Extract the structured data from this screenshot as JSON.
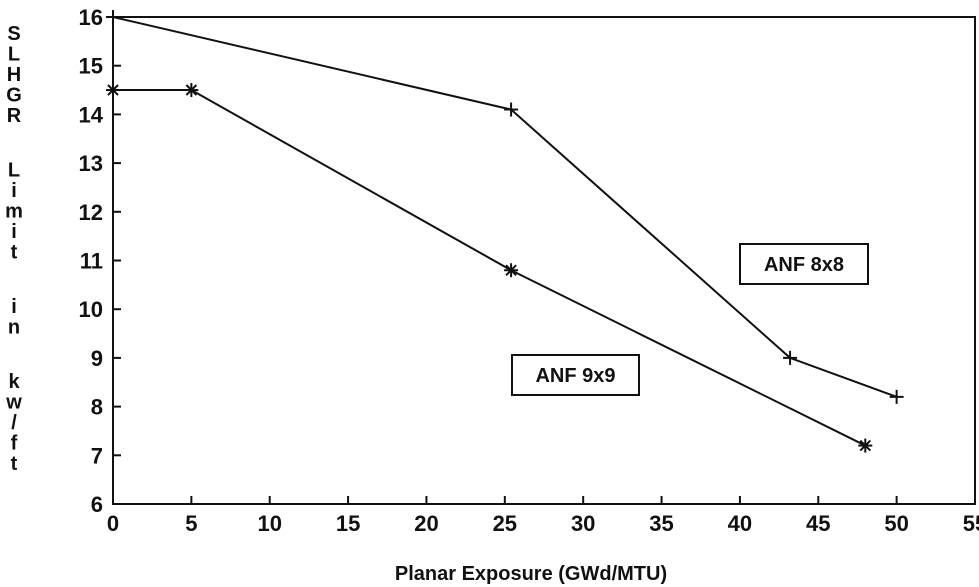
{
  "chart_data": {
    "type": "line",
    "xlabel": "Planar Exposure (GWd/MTU)",
    "ylabel": "SLHGR Limit in kw/ft",
    "xlim": [
      0,
      55
    ],
    "ylim": [
      6,
      16
    ],
    "x_ticks": [
      "0",
      "5",
      "10",
      "15",
      "20",
      "25",
      "30",
      "35",
      "40",
      "45",
      "50",
      "55"
    ],
    "y_ticks": [
      "6",
      "7",
      "8",
      "9",
      "10",
      "11",
      "12",
      "13",
      "14",
      "15",
      "16"
    ],
    "grid": false,
    "legend": "none",
    "series": [
      {
        "name": "ANF 8x8",
        "marker": "plus",
        "color": "#111111",
        "points": [
          [
            0,
            16.0
          ],
          [
            25.4,
            14.1
          ],
          [
            43.2,
            9.0
          ],
          [
            50.0,
            8.2
          ]
        ]
      },
      {
        "name": "ANF 9x9",
        "marker": "asterisk",
        "color": "#111111",
        "points": [
          [
            0,
            14.5
          ],
          [
            5.0,
            14.5
          ],
          [
            25.4,
            10.8
          ],
          [
            48.0,
            7.2
          ]
        ]
      }
    ],
    "annotations": [
      {
        "text": "ANF 8x8",
        "series": "ANF 8x8"
      },
      {
        "text": "ANF 9x9",
        "series": "ANF 9x9"
      }
    ]
  }
}
